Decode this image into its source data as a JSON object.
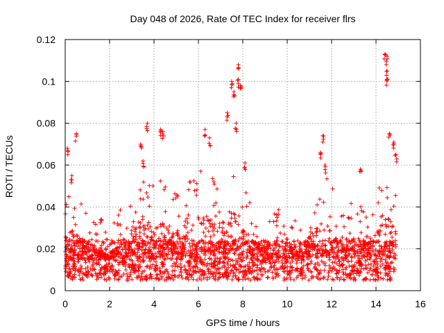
{
  "chart_data": {
    "type": "scatter",
    "title": "Day 048 of 2026, Rate Of TEC Index for receiver flrs",
    "xlabel": "GPS time / hours",
    "ylabel": "ROTI / TECUs",
    "xlim": [
      0,
      16
    ],
    "ylim": [
      0,
      0.12
    ],
    "x_ticks": [
      0,
      2,
      4,
      6,
      8,
      10,
      12,
      14,
      16
    ],
    "x_tick_labels": [
      "0",
      "2",
      "4",
      "6",
      "8",
      "10",
      "12",
      "14",
      "16"
    ],
    "y_ticks": [
      0,
      0.02,
      0.04,
      0.06,
      0.08,
      0.1,
      0.12
    ],
    "y_tick_labels": [
      "0",
      "0.02",
      "0.04",
      "0.06",
      "0.08",
      "0.1",
      "0.12"
    ],
    "grid": true,
    "marker": "plus",
    "color": "#ff0000",
    "series": [
      {
        "name": "ROTI",
        "x_range": [
          0,
          14.9
        ],
        "baseline_typical": 0.015,
        "baseline_low": 0.005,
        "notable_points": [
          {
            "x": 0.1,
            "y": 0.068
          },
          {
            "x": 0.5,
            "y": 0.075
          },
          {
            "x": 0.3,
            "y": 0.055
          },
          {
            "x": 1.6,
            "y": 0.034
          },
          {
            "x": 3.4,
            "y": 0.07
          },
          {
            "x": 3.7,
            "y": 0.08
          },
          {
            "x": 3.5,
            "y": 0.062
          },
          {
            "x": 4.3,
            "y": 0.077
          },
          {
            "x": 4.4,
            "y": 0.076
          },
          {
            "x": 6.3,
            "y": 0.077
          },
          {
            "x": 6.5,
            "y": 0.073
          },
          {
            "x": 7.3,
            "y": 0.085
          },
          {
            "x": 7.5,
            "y": 0.1
          },
          {
            "x": 7.6,
            "y": 0.095
          },
          {
            "x": 7.8,
            "y": 0.108
          },
          {
            "x": 7.8,
            "y": 0.101
          },
          {
            "x": 7.9,
            "y": 0.098
          },
          {
            "x": 7.7,
            "y": 0.08
          },
          {
            "x": 8.1,
            "y": 0.061
          },
          {
            "x": 11.6,
            "y": 0.074
          },
          {
            "x": 11.5,
            "y": 0.066
          },
          {
            "x": 11.7,
            "y": 0.06
          },
          {
            "x": 13.3,
            "y": 0.058
          },
          {
            "x": 14.4,
            "y": 0.113
          },
          {
            "x": 14.5,
            "y": 0.112
          },
          {
            "x": 14.5,
            "y": 0.105
          },
          {
            "x": 14.5,
            "y": 0.101
          },
          {
            "x": 14.6,
            "y": 0.075
          },
          {
            "x": 14.8,
            "y": 0.071
          },
          {
            "x": 14.9,
            "y": 0.065
          }
        ],
        "activity_envelope": [
          {
            "x": 0.0,
            "y": 0.045
          },
          {
            "x": 0.5,
            "y": 0.05
          },
          {
            "x": 1.0,
            "y": 0.035
          },
          {
            "x": 1.5,
            "y": 0.032
          },
          {
            "x": 2.0,
            "y": 0.028
          },
          {
            "x": 2.5,
            "y": 0.04
          },
          {
            "x": 3.0,
            "y": 0.05
          },
          {
            "x": 3.5,
            "y": 0.06
          },
          {
            "x": 4.0,
            "y": 0.05
          },
          {
            "x": 4.5,
            "y": 0.055
          },
          {
            "x": 5.0,
            "y": 0.048
          },
          {
            "x": 5.5,
            "y": 0.055
          },
          {
            "x": 6.0,
            "y": 0.06
          },
          {
            "x": 6.5,
            "y": 0.058
          },
          {
            "x": 7.0,
            "y": 0.055
          },
          {
            "x": 7.5,
            "y": 0.065
          },
          {
            "x": 8.0,
            "y": 0.05
          },
          {
            "x": 8.5,
            "y": 0.04
          },
          {
            "x": 9.0,
            "y": 0.035
          },
          {
            "x": 9.5,
            "y": 0.04
          },
          {
            "x": 10.0,
            "y": 0.035
          },
          {
            "x": 10.5,
            "y": 0.035
          },
          {
            "x": 11.0,
            "y": 0.045
          },
          {
            "x": 11.5,
            "y": 0.06
          },
          {
            "x": 12.0,
            "y": 0.05
          },
          {
            "x": 12.5,
            "y": 0.04
          },
          {
            "x": 13.0,
            "y": 0.045
          },
          {
            "x": 13.5,
            "y": 0.04
          },
          {
            "x": 14.0,
            "y": 0.045
          },
          {
            "x": 14.5,
            "y": 0.06
          },
          {
            "x": 14.9,
            "y": 0.05
          }
        ]
      }
    ]
  }
}
